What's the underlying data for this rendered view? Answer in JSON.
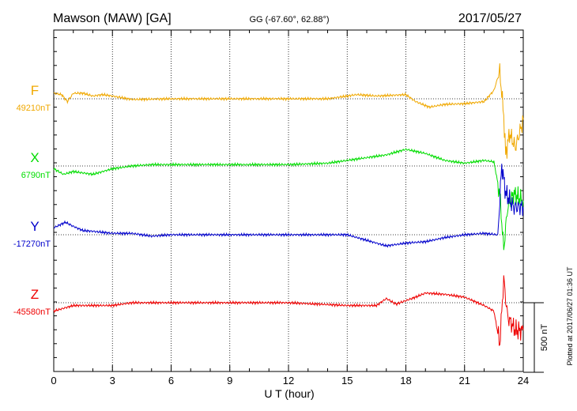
{
  "header": {
    "station": "Mawson (MAW)  [GA]",
    "coords": "GG (-67.60°,  62.88°)",
    "date": "2017/05/27"
  },
  "footer": {
    "plotted": "Plotted at 2017/06/27 01:36 UT"
  },
  "chart_data": {
    "type": "line",
    "xlabel": "U T (hour)",
    "xlim": [
      0,
      24
    ],
    "xticks": [
      0,
      3,
      6,
      9,
      12,
      15,
      18,
      21,
      24
    ],
    "grid": true,
    "scale_bar": {
      "label": "500 nT",
      "value": 500
    },
    "series": [
      {
        "name": "F",
        "baseline_label": "49210nT",
        "color": "#f0a800",
        "points": [
          [
            0,
            40
          ],
          [
            0.4,
            30
          ],
          [
            0.7,
            -20
          ],
          [
            1,
            40
          ],
          [
            1.5,
            40
          ],
          [
            2,
            20
          ],
          [
            2.5,
            30
          ],
          [
            3,
            20
          ],
          [
            4,
            -5
          ],
          [
            6,
            0
          ],
          [
            9,
            0
          ],
          [
            12,
            0
          ],
          [
            14,
            0
          ],
          [
            15.5,
            30
          ],
          [
            16.5,
            20
          ],
          [
            18,
            30
          ],
          [
            18.5,
            -20
          ],
          [
            19.2,
            -60
          ],
          [
            20,
            -40
          ],
          [
            21,
            -35
          ],
          [
            22,
            -20
          ],
          [
            22.5,
            60
          ],
          [
            22.8,
            200
          ],
          [
            23,
            -120
          ],
          [
            23.1,
            -400
          ],
          [
            23.3,
            -250
          ],
          [
            23.6,
            -350
          ],
          [
            24,
            -150
          ]
        ]
      },
      {
        "name": "X",
        "baseline_label": "6790nT",
        "color": "#00dd00",
        "points": [
          [
            0,
            -20
          ],
          [
            0.5,
            -60
          ],
          [
            1,
            -40
          ],
          [
            2,
            -60
          ],
          [
            3,
            -20
          ],
          [
            4,
            0
          ],
          [
            5,
            10
          ],
          [
            6,
            10
          ],
          [
            9,
            10
          ],
          [
            12,
            10
          ],
          [
            14,
            20
          ],
          [
            15.5,
            50
          ],
          [
            17,
            80
          ],
          [
            18,
            120
          ],
          [
            19,
            90
          ],
          [
            20,
            40
          ],
          [
            21,
            20
          ],
          [
            22,
            40
          ],
          [
            22.5,
            30
          ],
          [
            22.8,
            -200
          ],
          [
            23,
            -600
          ],
          [
            23.2,
            -300
          ],
          [
            23.5,
            -200
          ],
          [
            24,
            -250
          ]
        ]
      },
      {
        "name": "Y",
        "baseline_label": "-17270nT",
        "color": "#0000cc",
        "points": [
          [
            0,
            50
          ],
          [
            0.6,
            90
          ],
          [
            1,
            60
          ],
          [
            1.5,
            30
          ],
          [
            2,
            25
          ],
          [
            3,
            10
          ],
          [
            4,
            10
          ],
          [
            5,
            -10
          ],
          [
            6,
            0
          ],
          [
            9,
            0
          ],
          [
            12,
            0
          ],
          [
            15,
            0
          ],
          [
            16,
            -40
          ],
          [
            17,
            -80
          ],
          [
            18,
            -60
          ],
          [
            19,
            -50
          ],
          [
            20,
            -20
          ],
          [
            21,
            0
          ],
          [
            22,
            10
          ],
          [
            22.7,
            0
          ],
          [
            22.9,
            500
          ],
          [
            23.1,
            300
          ],
          [
            23.5,
            200
          ],
          [
            24,
            200
          ]
        ]
      },
      {
        "name": "Z",
        "baseline_label": "-45580nT",
        "color": "#ee0000",
        "points": [
          [
            0,
            -60
          ],
          [
            0.5,
            -40
          ],
          [
            1,
            -20
          ],
          [
            2,
            -20
          ],
          [
            3,
            -20
          ],
          [
            4,
            0
          ],
          [
            6,
            0
          ],
          [
            9,
            0
          ],
          [
            12,
            0
          ],
          [
            15,
            -20
          ],
          [
            16.5,
            -20
          ],
          [
            17,
            30
          ],
          [
            17.5,
            -10
          ],
          [
            18.5,
            40
          ],
          [
            19,
            70
          ],
          [
            20,
            60
          ],
          [
            21,
            40
          ],
          [
            22,
            -20
          ],
          [
            22.5,
            -60
          ],
          [
            22.8,
            -300
          ],
          [
            23,
            170
          ],
          [
            23.2,
            -100
          ],
          [
            23.6,
            -200
          ],
          [
            24,
            -200
          ]
        ]
      }
    ]
  }
}
